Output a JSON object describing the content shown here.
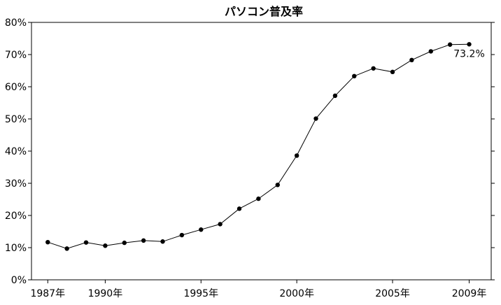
{
  "chart_data": {
    "type": "line",
    "title": "パソコン普及率",
    "xlabel": "",
    "ylabel": "",
    "x": [
      1987,
      1988,
      1989,
      1990,
      1991,
      1992,
      1993,
      1994,
      1995,
      1996,
      1997,
      1998,
      1999,
      2000,
      2001,
      2002,
      2003,
      2004,
      2005,
      2006,
      2007,
      2008,
      2009
    ],
    "series": [
      {
        "name": "パソコン普及率",
        "values": [
          11.7,
          9.7,
          11.6,
          10.6,
          11.5,
          12.2,
          11.9,
          13.9,
          15.6,
          17.3,
          22.1,
          25.2,
          29.5,
          38.6,
          50.1,
          57.2,
          63.3,
          65.7,
          64.6,
          68.3,
          71.0,
          73.1,
          73.2
        ]
      }
    ],
    "ylim": [
      0,
      80
    ],
    "xlim": [
      1986.15,
      2010.15
    ],
    "y_ticks": [
      0,
      10,
      20,
      30,
      40,
      50,
      60,
      70,
      80
    ],
    "y_tick_labels": [
      "0%",
      "10%",
      "20%",
      "30%",
      "40%",
      "50%",
      "60%",
      "70%",
      "80%"
    ],
    "x_ticks": [
      1987,
      1990,
      1995,
      2000,
      2005,
      2009
    ],
    "x_tick_labels": [
      "1987年",
      "1990年",
      "1995年",
      "2000年",
      "2005年",
      "2009年"
    ],
    "annotation": {
      "text": "73.2%",
      "x": 2009,
      "y": 73.2
    },
    "grid": false,
    "legend": "none"
  }
}
